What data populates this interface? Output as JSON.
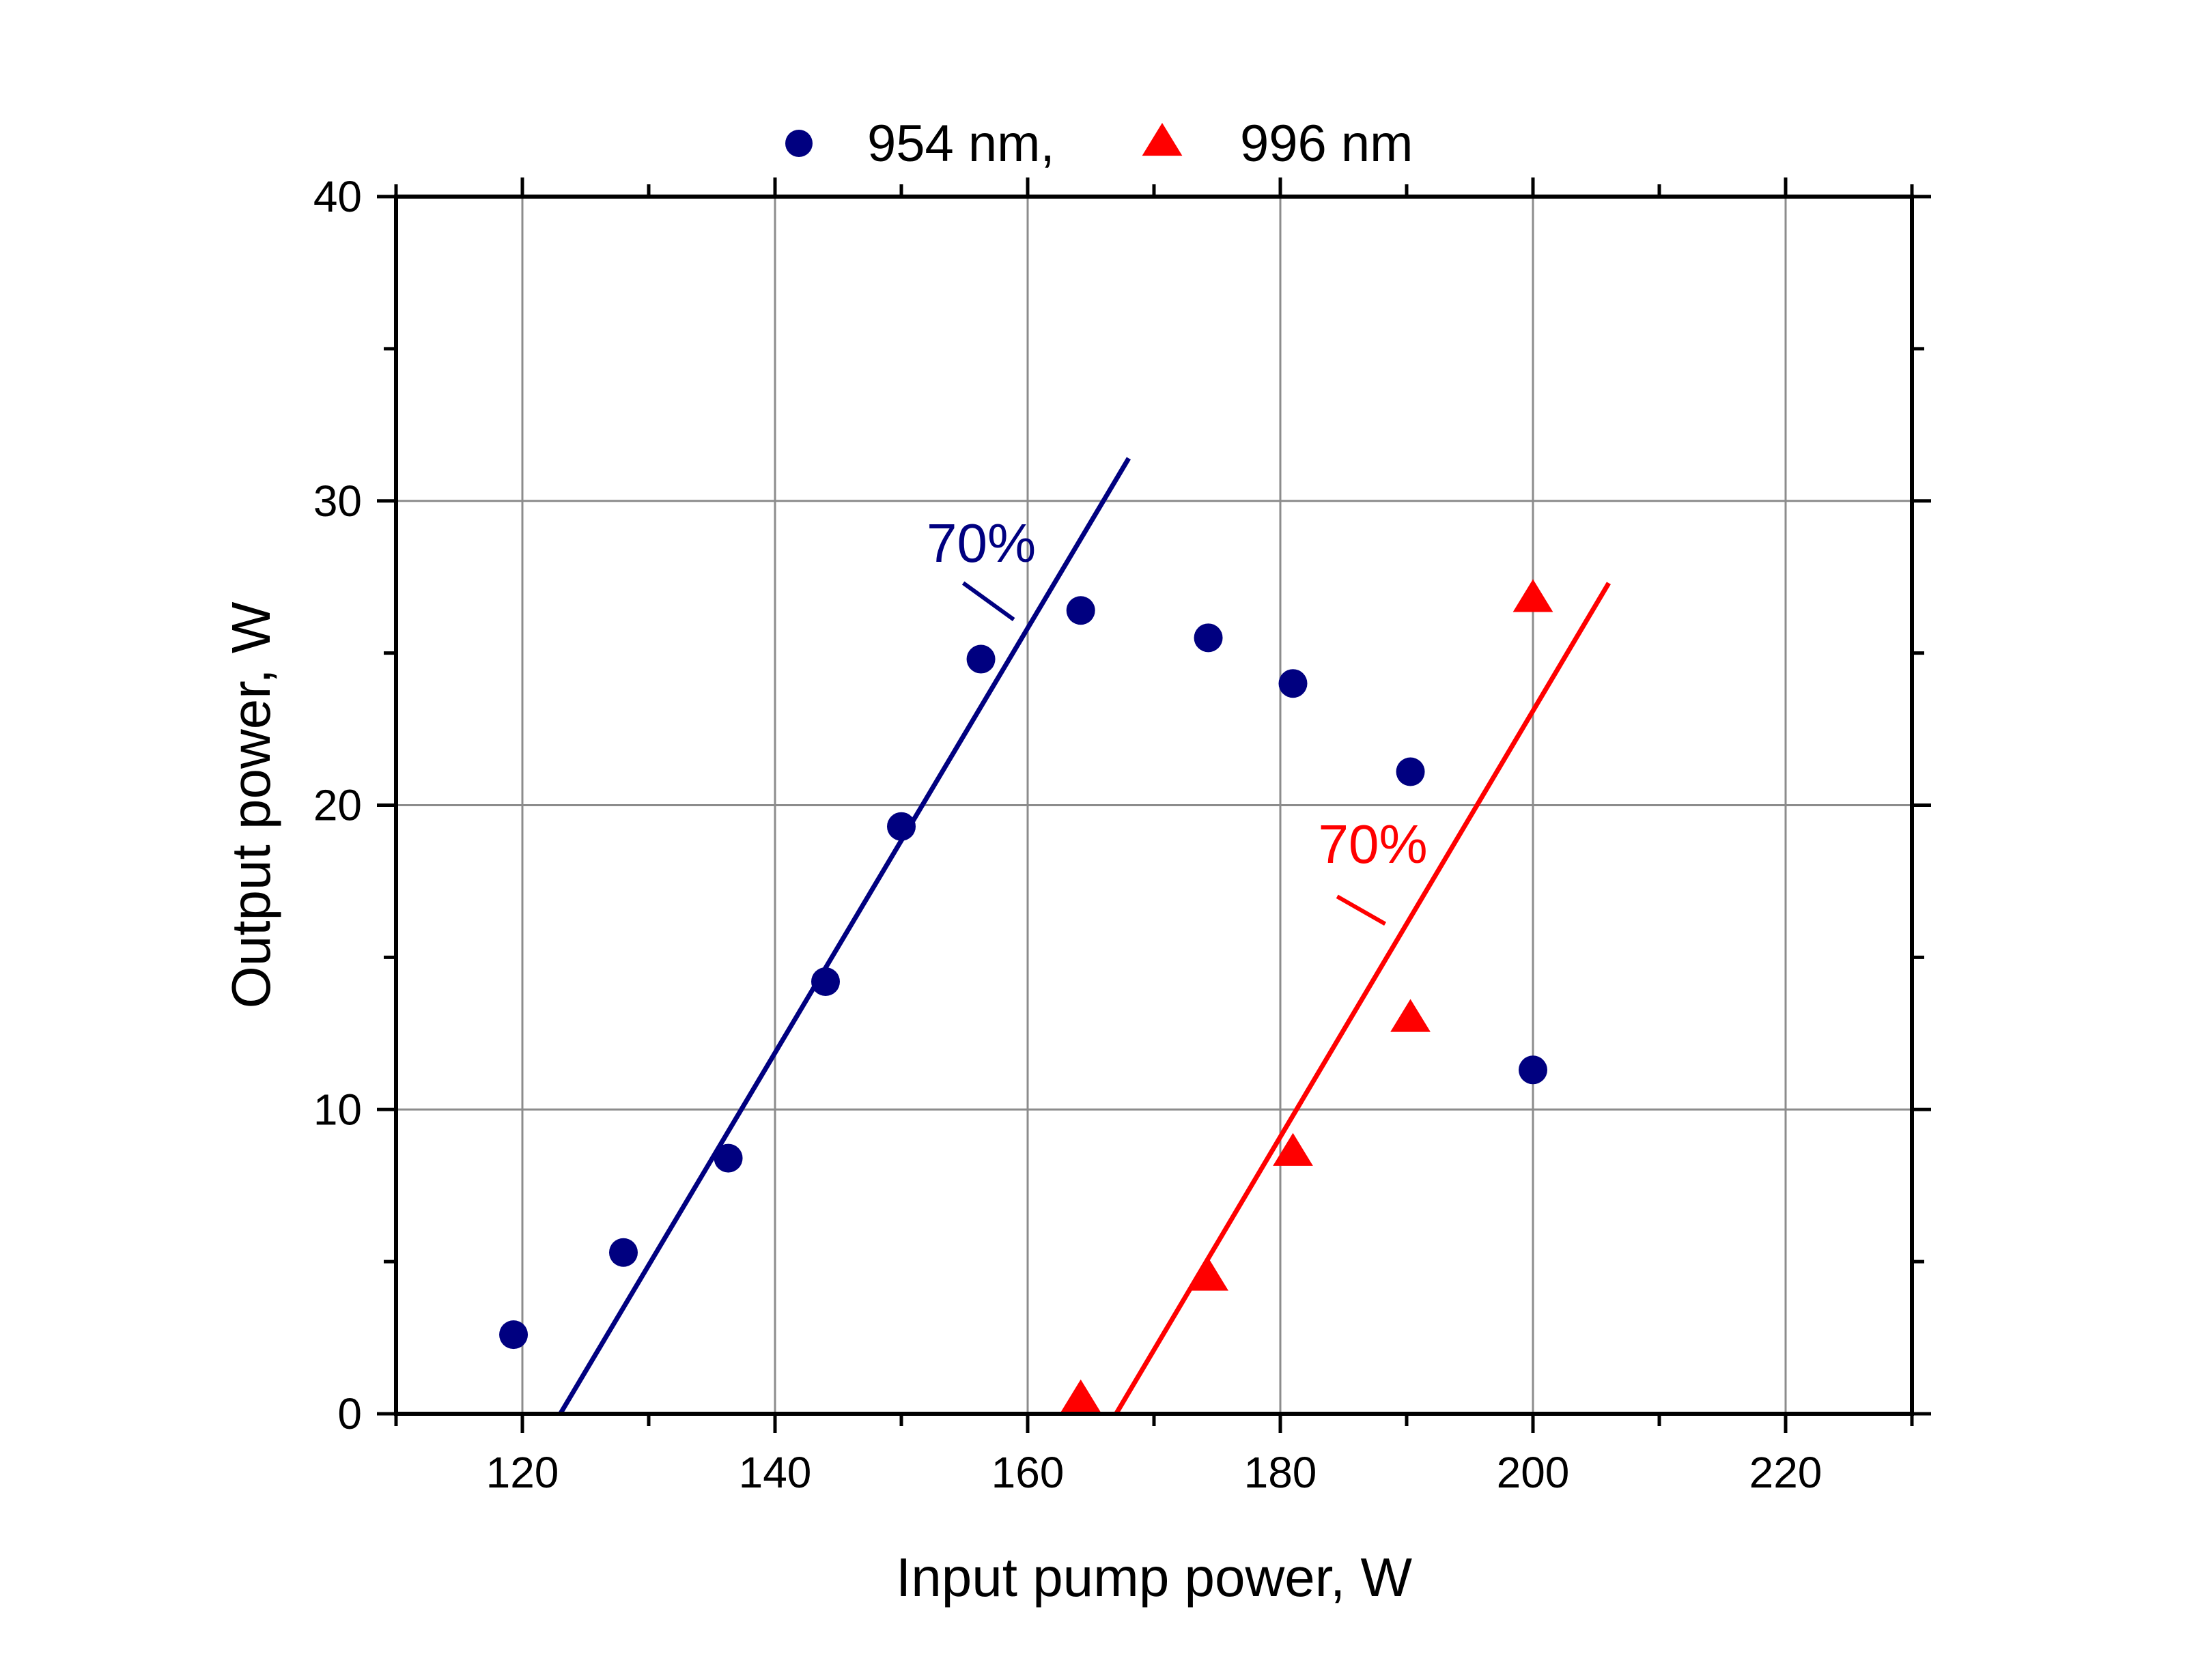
{
  "chart_data": {
    "type": "scatter",
    "title": "",
    "xlabel": "Input pump power, W",
    "ylabel": "Output power, W",
    "xlim": [
      110,
      230
    ],
    "ylim": [
      0,
      40
    ],
    "x_ticks": [
      120,
      140,
      160,
      180,
      200,
      220
    ],
    "y_ticks": [
      0,
      10,
      20,
      30,
      40
    ],
    "grid": true,
    "legend_position": "top-center",
    "series": [
      {
        "name": "954 nm,",
        "marker": "circle",
        "color": "#000080",
        "x": [
          119.3,
          128,
          136.3,
          144,
          150,
          156.3,
          164.2,
          174.3,
          181,
          190.3,
          200
        ],
        "y": [
          2.6,
          5.3,
          8.4,
          14.2,
          19.3,
          24.8,
          26.4,
          25.5,
          24.0,
          21.1,
          11.3
        ]
      },
      {
        "name": "996 nm",
        "marker": "triangle",
        "color": "#ff0000",
        "x": [
          164.2,
          174.3,
          181,
          190.3,
          200
        ],
        "y": [
          0.5,
          4.5,
          8.6,
          13.0,
          26.8
        ]
      }
    ],
    "fit_lines": [
      {
        "series": "954 nm,",
        "color": "#000080",
        "x": [
          123,
          168
        ],
        "y": [
          0,
          31.4
        ]
      },
      {
        "series": "996 nm",
        "color": "#ff0000",
        "x": [
          167,
          206
        ],
        "y": [
          0,
          27.3
        ]
      }
    ],
    "annotations": [
      {
        "text": "70%",
        "color": "#000080",
        "x": 152,
        "y": 28,
        "leader_from": [
          154.9,
          27.3
        ],
        "leader_to": [
          158.9,
          26.1
        ]
      },
      {
        "text": "70%",
        "color": "#ff0000",
        "x": 183,
        "y": 18.1,
        "leader_from": [
          184.5,
          17.0
        ],
        "leader_to": [
          188.3,
          16.1
        ]
      }
    ]
  }
}
